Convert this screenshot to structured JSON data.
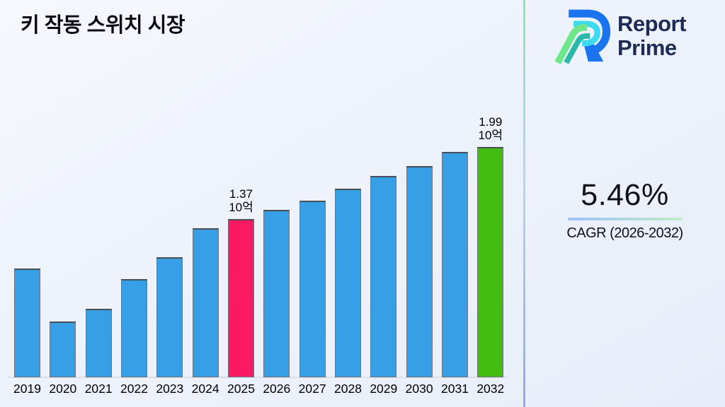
{
  "page": {
    "title": "키 작동 스위치 시장"
  },
  "brand": {
    "name_line1": "Report",
    "name_line2": "Prime",
    "icon": "report-prime-r-logo"
  },
  "cagr": {
    "value": "5.46%",
    "label": "CAGR (2026-2032)"
  },
  "colors": {
    "background": "#EDF2FB",
    "bar_default": "#379FE6",
    "bar_2025_highlight": "#FA1A63",
    "bar_2032_highlight": "#43BD11",
    "bar_border": "#6F747C",
    "divider_top": "#8AE5B0",
    "divider_bottom": "#8FA8F0",
    "cagr_underline_left": "#9EC0F6",
    "cagr_underline_right": "#BFEEC8",
    "title_text": "#0A0A14",
    "brand_text": "#1E2B55",
    "axis_line": "#D9DEE8",
    "label_text": "#000000"
  },
  "chart_data": {
    "type": "bar",
    "title": "키 작동 스위치 시장",
    "xlabel": "",
    "ylabel": "",
    "unit": "10억",
    "categories": [
      "2019",
      "2020",
      "2021",
      "2022",
      "2023",
      "2024",
      "2025",
      "2026",
      "2027",
      "2028",
      "2029",
      "2030",
      "2031",
      "2032"
    ],
    "values": [
      0.94,
      0.48,
      0.59,
      0.85,
      1.04,
      1.29,
      1.37,
      1.45,
      1.53,
      1.63,
      1.74,
      1.83,
      1.95,
      1.99
    ],
    "ylim": [
      0,
      2.2
    ],
    "grid": false,
    "legend": "none",
    "bar_color_default": "#379FE6",
    "bar_colors": {
      "2025": "#FA1A63",
      "2032": "#43BD11"
    },
    "annotations": [
      {
        "category": "2025",
        "lines": [
          "1.37",
          "10억"
        ]
      },
      {
        "category": "2032",
        "lines": [
          "1.99",
          "10억"
        ]
      }
    ]
  }
}
